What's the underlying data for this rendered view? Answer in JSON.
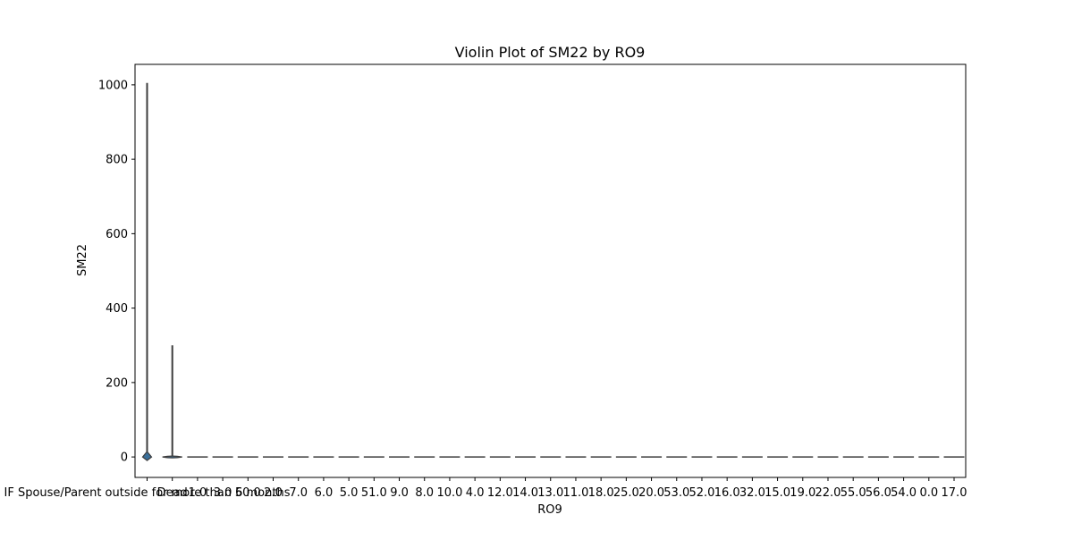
{
  "chart_data": {
    "type": "violin",
    "title": "Violin Plot of SM22 by RO9",
    "xlabel": "RO9",
    "ylabel": "SM22",
    "ylim": [
      -55,
      1055
    ],
    "yticks": [
      0,
      200,
      400,
      600,
      800,
      1000
    ],
    "grid": false,
    "categories": [
      "IF Spouse/Parent outside for more than 6 months",
      "Dead",
      "1.0",
      "3.0",
      "50.0",
      "2.0",
      "7.0",
      "6.0",
      "5.0",
      "51.0",
      "9.0",
      "8.0",
      "10.0",
      "4.0",
      "12.0",
      "14.0",
      "13.0",
      "11.0",
      "18.0",
      "25.0",
      "20.0",
      "53.0",
      "52.0",
      "16.0",
      "32.0",
      "15.0",
      "19.0",
      "22.0",
      "55.0",
      "56.0",
      "54.0",
      "0.0",
      "17.0"
    ],
    "tick_labels": [
      "IF Spouse/Parent outside for more than 6 months",
      "Dead",
      "1.0",
      "3.0",
      "50.0",
      "2.0",
      "7.0",
      "6.0",
      "5.0",
      "51.0",
      "9.0",
      "8.0",
      "10.0",
      "4.0",
      "12.0",
      "14.0",
      "13.0",
      "11.0",
      "18.0",
      "25.0",
      "20.0",
      "53.0",
      "52.0",
      "16.0",
      "32.0",
      "15.0",
      "19.0",
      "22.0",
      "55.0",
      "56.0",
      "54.0",
      "0.0",
      "17.0"
    ],
    "series": [
      {
        "category": "IF Spouse/Parent outside for more than 6 months",
        "min": 0,
        "max": 1005,
        "median": 2
      },
      {
        "category": "Dead",
        "min": 0,
        "max": 300,
        "median": 0
      },
      {
        "category": "1.0",
        "min": 0,
        "max": 0,
        "median": 0
      },
      {
        "category": "3.0",
        "min": 0,
        "max": 0,
        "median": 0
      },
      {
        "category": "50.0",
        "min": 0,
        "max": 0,
        "median": 0
      },
      {
        "category": "2.0",
        "min": 0,
        "max": 0,
        "median": 0
      },
      {
        "category": "7.0",
        "min": 0,
        "max": 0,
        "median": 0
      },
      {
        "category": "6.0",
        "min": 0,
        "max": 0,
        "median": 0
      },
      {
        "category": "5.0",
        "min": 0,
        "max": 0,
        "median": 0
      },
      {
        "category": "51.0",
        "min": 0,
        "max": 0,
        "median": 0
      },
      {
        "category": "9.0",
        "min": 0,
        "max": 0,
        "median": 0
      },
      {
        "category": "8.0",
        "min": 0,
        "max": 0,
        "median": 0
      },
      {
        "category": "10.0",
        "min": 0,
        "max": 0,
        "median": 0
      },
      {
        "category": "4.0",
        "min": 0,
        "max": 0,
        "median": 0
      },
      {
        "category": "12.0",
        "min": 0,
        "max": 0,
        "median": 0
      },
      {
        "category": "14.0",
        "min": 0,
        "max": 0,
        "median": 0
      },
      {
        "category": "13.0",
        "min": 0,
        "max": 0,
        "median": 0
      },
      {
        "category": "11.0",
        "min": 0,
        "max": 0,
        "median": 0
      },
      {
        "category": "18.0",
        "min": 0,
        "max": 0,
        "median": 0
      },
      {
        "category": "25.0",
        "min": 0,
        "max": 0,
        "median": 0
      },
      {
        "category": "20.0",
        "min": 0,
        "max": 0,
        "median": 0
      },
      {
        "category": "53.0",
        "min": 0,
        "max": 0,
        "median": 0
      },
      {
        "category": "52.0",
        "min": 0,
        "max": 0,
        "median": 0
      },
      {
        "category": "16.0",
        "min": 0,
        "max": 0,
        "median": 0
      },
      {
        "category": "32.0",
        "min": 0,
        "max": 0,
        "median": 0
      },
      {
        "category": "15.0",
        "min": 0,
        "max": 0,
        "median": 0
      },
      {
        "category": "19.0",
        "min": 0,
        "max": 0,
        "median": 0
      },
      {
        "category": "22.0",
        "min": 0,
        "max": 0,
        "median": 0
      },
      {
        "category": "55.0",
        "min": 0,
        "max": 0,
        "median": 0
      },
      {
        "category": "56.0",
        "min": 0,
        "max": 0,
        "median": 0
      },
      {
        "category": "54.0",
        "min": 0,
        "max": 0,
        "median": 0
      },
      {
        "category": "0.0",
        "min": 0,
        "max": 0,
        "median": 0
      },
      {
        "category": "17.0",
        "min": 0,
        "max": 0,
        "median": 0
      }
    ],
    "colors": {
      "violin_fill": "#3a6f9a",
      "line": "#3d3d3d",
      "axis": "#000000",
      "background": "#ffffff"
    }
  }
}
